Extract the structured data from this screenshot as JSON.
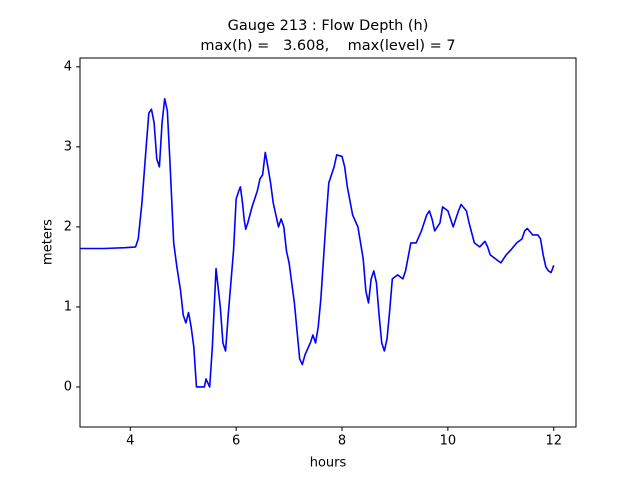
{
  "chart_data": {
    "type": "line",
    "title": "Gauge 213 : Flow Depth (h)",
    "subtitle": "max(h) =   3.608,    max(level) = 7",
    "x_label": "hours",
    "y_label": "meters",
    "x": [
      3.05,
      3.5,
      3.9,
      4.1,
      4.15,
      4.22,
      4.3,
      4.35,
      4.4,
      4.45,
      4.5,
      4.55,
      4.6,
      4.65,
      4.7,
      4.75,
      4.82,
      4.88,
      4.95,
      5.0,
      5.05,
      5.1,
      5.15,
      5.2,
      5.25,
      5.4,
      5.43,
      5.5,
      5.55,
      5.62,
      5.7,
      5.75,
      5.8,
      5.85,
      5.95,
      6.0,
      6.05,
      6.08,
      6.12,
      6.15,
      6.18,
      6.22,
      6.3,
      6.4,
      6.45,
      6.5,
      6.55,
      6.6,
      6.65,
      6.7,
      6.75,
      6.8,
      6.85,
      6.9,
      6.95,
      7.0,
      7.05,
      7.1,
      7.15,
      7.2,
      7.25,
      7.3,
      7.4,
      7.45,
      7.5,
      7.55,
      7.6,
      7.65,
      7.7,
      7.75,
      7.8,
      7.85,
      7.9,
      8.0,
      8.05,
      8.1,
      8.2,
      8.3,
      8.4,
      8.45,
      8.5,
      8.55,
      8.6,
      8.65,
      8.7,
      8.75,
      8.8,
      8.85,
      8.9,
      8.95,
      9.05,
      9.15,
      9.2,
      9.3,
      9.4,
      9.5,
      9.6,
      9.65,
      9.7,
      9.75,
      9.85,
      9.9,
      10.0,
      10.05,
      10.1,
      10.2,
      10.25,
      10.35,
      10.4,
      10.5,
      10.6,
      10.7,
      10.75,
      10.8,
      10.9,
      11.0,
      11.1,
      11.2,
      11.3,
      11.4,
      11.45,
      11.5,
      11.6,
      11.7,
      11.75,
      11.8,
      11.85,
      11.9,
      11.95,
      12.0
    ],
    "series": [
      {
        "name": "h",
        "color": "#0000ff",
        "values": [
          1.73,
          1.73,
          1.74,
          1.75,
          1.85,
          2.3,
          3.0,
          3.42,
          3.47,
          3.3,
          2.85,
          2.75,
          3.3,
          3.6,
          3.45,
          2.8,
          1.8,
          1.5,
          1.2,
          0.9,
          0.8,
          0.93,
          0.75,
          0.5,
          0.0,
          0.0,
          0.1,
          0.0,
          0.5,
          1.48,
          1.0,
          0.55,
          0.45,
          0.9,
          1.7,
          2.35,
          2.45,
          2.5,
          2.3,
          2.1,
          1.97,
          2.05,
          2.25,
          2.45,
          2.6,
          2.65,
          2.93,
          2.75,
          2.55,
          2.3,
          2.15,
          2.0,
          2.1,
          2.0,
          1.7,
          1.55,
          1.3,
          1.05,
          0.7,
          0.35,
          0.28,
          0.4,
          0.55,
          0.65,
          0.55,
          0.75,
          1.1,
          1.6,
          2.1,
          2.55,
          2.65,
          2.75,
          2.9,
          2.88,
          2.75,
          2.5,
          2.15,
          2.0,
          1.6,
          1.2,
          1.05,
          1.35,
          1.45,
          1.3,
          0.9,
          0.55,
          0.45,
          0.6,
          0.95,
          1.35,
          1.4,
          1.35,
          1.45,
          1.8,
          1.8,
          1.95,
          2.15,
          2.2,
          2.1,
          1.95,
          2.05,
          2.25,
          2.2,
          2.1,
          2.0,
          2.2,
          2.28,
          2.2,
          2.05,
          1.8,
          1.75,
          1.82,
          1.75,
          1.65,
          1.6,
          1.55,
          1.65,
          1.72,
          1.8,
          1.85,
          1.95,
          1.98,
          1.9,
          1.9,
          1.85,
          1.65,
          1.5,
          1.45,
          1.43,
          1.52
        ]
      }
    ],
    "xlim": [
      3.05,
      12.42
    ],
    "xticks": [
      4,
      6,
      8,
      10,
      12
    ],
    "ylim": [
      -0.5,
      4.11
    ],
    "yticks": [
      0,
      1,
      2,
      3,
      4
    ]
  }
}
